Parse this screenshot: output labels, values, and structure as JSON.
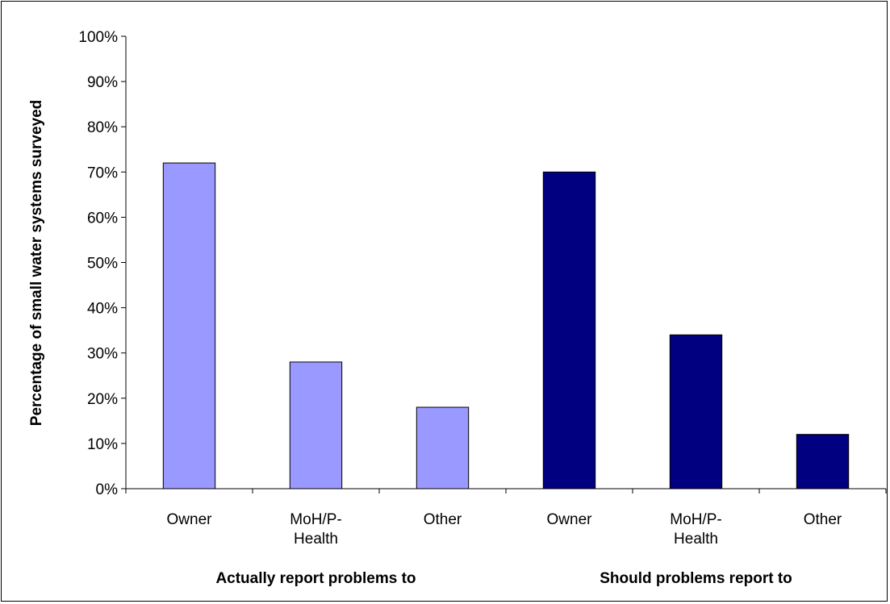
{
  "chart_data": {
    "type": "bar",
    "title": "",
    "ylabel": "Percentage of small water systems surveyed",
    "ylim": [
      0,
      100
    ],
    "yticks": [
      "0%",
      "10%",
      "20%",
      "30%",
      "40%",
      "50%",
      "60%",
      "70%",
      "80%",
      "90%",
      "100%"
    ],
    "grid": false,
    "legend": "none",
    "groups": [
      {
        "label": "Actually report problems to",
        "color": "#9999ff",
        "bars": [
          {
            "category": [
              "Owner"
            ],
            "value": 72
          },
          {
            "category": [
              "MoH/P-",
              "Health"
            ],
            "value": 28
          },
          {
            "category": [
              "Other"
            ],
            "value": 18
          }
        ]
      },
      {
        "label": "Should problems report to",
        "color": "#000080",
        "bars": [
          {
            "category": [
              "Owner"
            ],
            "value": 70
          },
          {
            "category": [
              "MoH/P-",
              "Health"
            ],
            "value": 34
          },
          {
            "category": [
              "Other"
            ],
            "value": 12
          }
        ]
      }
    ]
  }
}
